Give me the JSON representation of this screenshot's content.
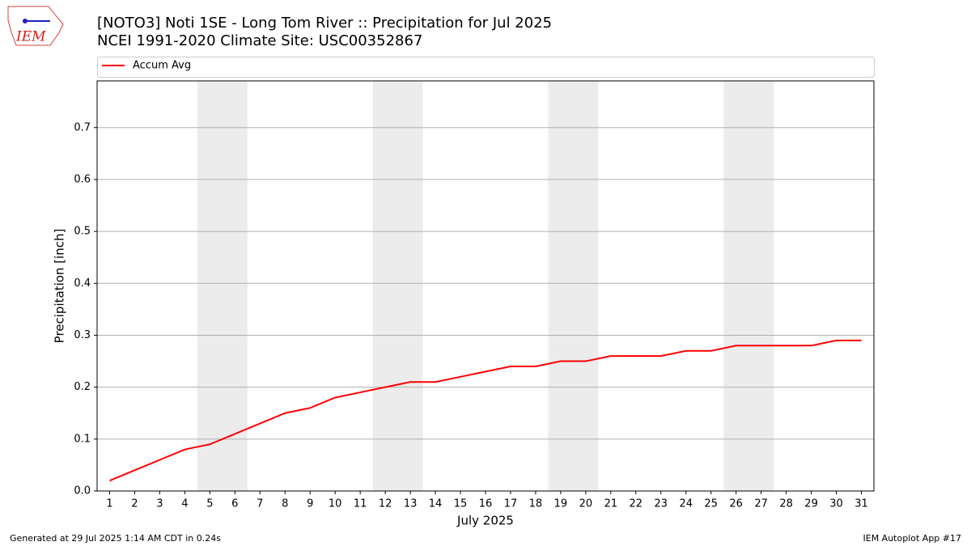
{
  "chart_data": {
    "type": "line",
    "title": "[NOTO3] Noti 1SE - Long Tom River :: Precipitation for Jul 2025",
    "subtitle": "NCEI 1991-2020 Climate Site: USC00352867",
    "logo": "IEM",
    "xlabel": "July 2025",
    "ylabel": "Precipitation [inch]",
    "x": [
      1,
      2,
      3,
      4,
      5,
      6,
      7,
      8,
      9,
      10,
      11,
      12,
      13,
      14,
      15,
      16,
      17,
      18,
      19,
      20,
      21,
      22,
      23,
      24,
      25,
      26,
      27,
      28,
      29,
      30,
      31
    ],
    "series": [
      {
        "name": "Accum Avg",
        "color": "#ff0000",
        "values": [
          0.02,
          0.04,
          0.06,
          0.08,
          0.09,
          0.11,
          0.13,
          0.15,
          0.16,
          0.18,
          0.19,
          0.2,
          0.21,
          0.21,
          0.22,
          0.23,
          0.24,
          0.24,
          0.25,
          0.25,
          0.26,
          0.26,
          0.26,
          0.27,
          0.27,
          0.28,
          0.28,
          0.28,
          0.28,
          0.29,
          0.29
        ]
      }
    ],
    "shaded_spans": [
      [
        4.5,
        6.5
      ],
      [
        11.5,
        13.5
      ],
      [
        18.5,
        20.5
      ],
      [
        25.5,
        27.5
      ]
    ],
    "shade_color": "#ececec",
    "xlim": [
      0.5,
      31.5
    ],
    "ylim": [
      0,
      0.79
    ],
    "xticks": [
      1,
      2,
      3,
      4,
      5,
      6,
      7,
      8,
      9,
      10,
      11,
      12,
      13,
      14,
      15,
      16,
      17,
      18,
      19,
      20,
      21,
      22,
      23,
      24,
      25,
      26,
      27,
      28,
      29,
      30,
      31
    ],
    "yticks": [
      {
        "value": 0,
        "label": "0.0"
      },
      0.1,
      0.2,
      0.3,
      0.4,
      0.5,
      0.6,
      0.7
    ],
    "grid": true,
    "legend": "top",
    "footer_left": "Generated at 29 Jul 2025 1:14 AM CDT in 0.24s",
    "footer_right": "IEM Autoplot App #17"
  }
}
